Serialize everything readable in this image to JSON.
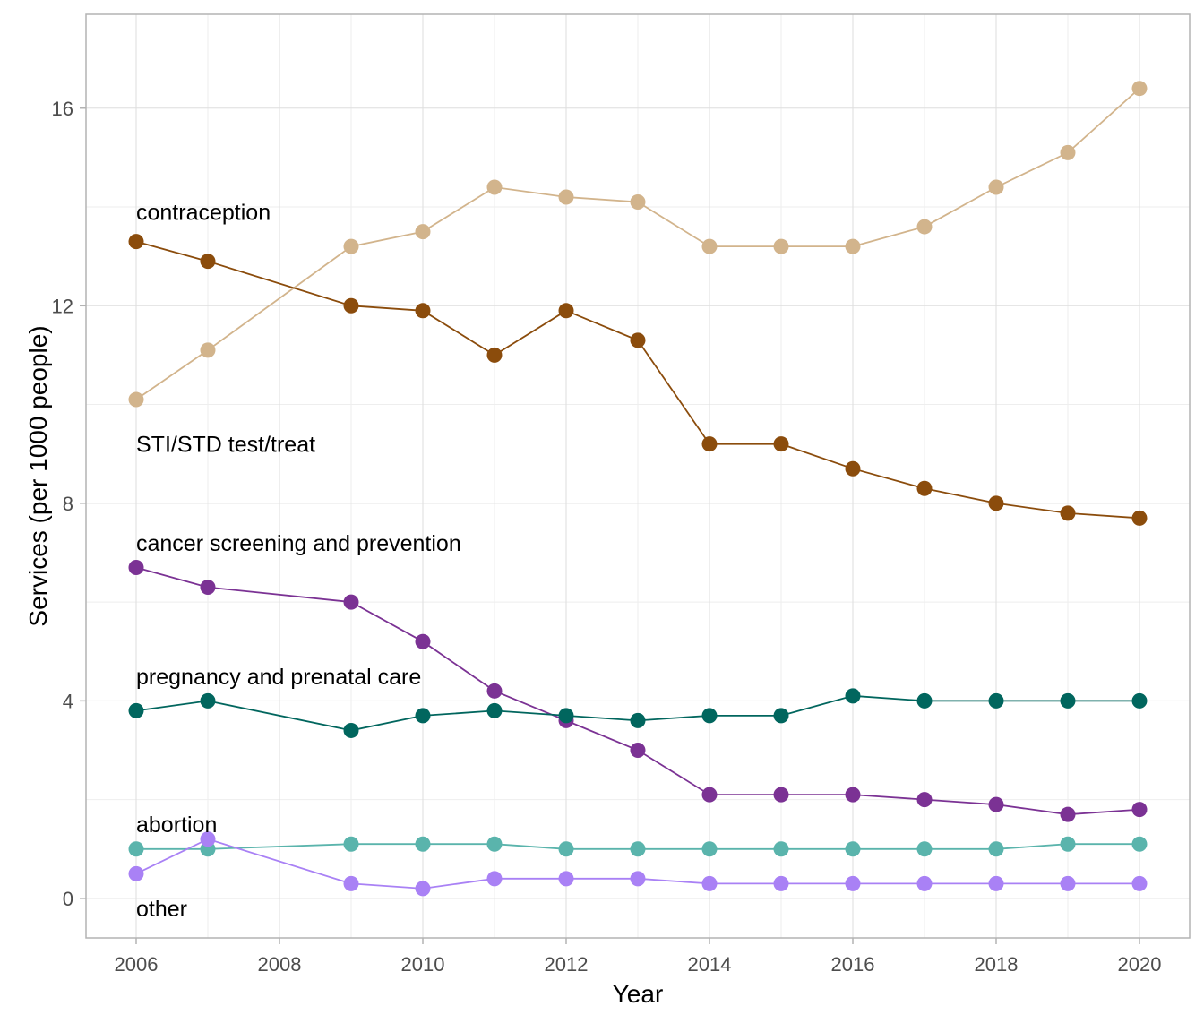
{
  "chart_data": {
    "type": "line",
    "title": "",
    "xlabel": "Year",
    "ylabel": "Services (per 1000 people)",
    "xlim": [
      2005.3,
      2020.7
    ],
    "ylim": [
      -0.8,
      17.9
    ],
    "x_ticks": [
      2006,
      2008,
      2010,
      2012,
      2014,
      2016,
      2018,
      2020
    ],
    "y_ticks": [
      0,
      4,
      8,
      12,
      16
    ],
    "x_tick_labels": [
      "2006",
      "2008",
      "2010",
      "2012",
      "2014",
      "2016",
      "2018",
      "2020"
    ],
    "y_tick_labels": [
      "0",
      "4",
      "8",
      "12",
      "16"
    ],
    "grid": true,
    "legend": "none (labels placed directly on chart)",
    "series": [
      {
        "name": "contraception",
        "color": "#d2b48c",
        "x": [
          2006,
          2007,
          2009,
          2010,
          2011,
          2012,
          2013,
          2014,
          2015,
          2016,
          2017,
          2018,
          2019,
          2020
        ],
        "values": [
          10.1,
          11.1,
          13.2,
          13.5,
          14.4,
          14.2,
          14.1,
          13.2,
          13.2,
          13.2,
          13.6,
          14.4,
          15.1,
          16.4
        ],
        "label_value": 13.9
      },
      {
        "name": "STI/STD test/treat",
        "color": "#8b4c0c",
        "x": [
          2006,
          2007,
          2009,
          2010,
          2011,
          2012,
          2013,
          2014,
          2015,
          2016,
          2017,
          2018,
          2019,
          2020
        ],
        "values": [
          13.3,
          12.9,
          12.0,
          11.9,
          11.0,
          11.9,
          11.3,
          9.2,
          9.2,
          8.7,
          8.3,
          8.0,
          7.8,
          7.7
        ],
        "label_value": 9.2
      },
      {
        "name": "cancer screening and prevention",
        "color": "#7b3294",
        "x": [
          2006,
          2007,
          2009,
          2010,
          2011,
          2012,
          2013,
          2014,
          2015,
          2016,
          2017,
          2018,
          2019,
          2020
        ],
        "values": [
          6.7,
          6.3,
          6.0,
          5.2,
          4.2,
          3.6,
          3.0,
          2.1,
          2.1,
          2.1,
          2.0,
          1.9,
          1.7,
          1.8
        ],
        "label_value": 7.2
      },
      {
        "name": "pregnancy and prenatal care",
        "color": "#01665e",
        "x": [
          2006,
          2007,
          2009,
          2010,
          2011,
          2012,
          2013,
          2014,
          2015,
          2016,
          2017,
          2018,
          2019,
          2020
        ],
        "values": [
          3.8,
          4.0,
          3.4,
          3.7,
          3.8,
          3.7,
          3.6,
          3.7,
          3.7,
          4.1,
          4.0,
          4.0,
          4.0,
          4.0
        ],
        "label_value": 4.5
      },
      {
        "name": "abortion",
        "color": "#5ab4ac",
        "x": [
          2006,
          2007,
          2009,
          2010,
          2011,
          2012,
          2013,
          2014,
          2015,
          2016,
          2017,
          2018,
          2019,
          2020
        ],
        "values": [
          1.0,
          1.0,
          1.1,
          1.1,
          1.1,
          1.0,
          1.0,
          1.0,
          1.0,
          1.0,
          1.0,
          1.0,
          1.1,
          1.1
        ],
        "label_value": 1.5
      },
      {
        "name": "other",
        "color": "#a981f5",
        "x": [
          2006,
          2007,
          2009,
          2010,
          2011,
          2012,
          2013,
          2014,
          2015,
          2016,
          2017,
          2018,
          2019,
          2020
        ],
        "values": [
          0.5,
          1.2,
          0.3,
          0.2,
          0.4,
          0.4,
          0.4,
          0.3,
          0.3,
          0.3,
          0.3,
          0.3,
          0.3,
          0.3
        ],
        "label_value": -0.2
      }
    ]
  }
}
